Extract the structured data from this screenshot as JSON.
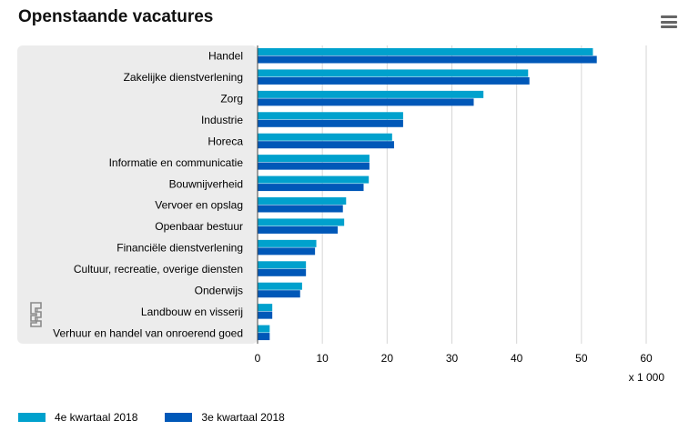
{
  "title": "Openstaande vacatures",
  "menu_icon": "hamburger-menu-icon",
  "logo": "cbs-logo",
  "chart_data": {
    "type": "bar",
    "orientation": "horizontal",
    "title": "Openstaande vacatures",
    "categories": [
      "Handel",
      "Zakelijke dienstverlening",
      "Zorg",
      "Industrie",
      "Horeca",
      "Informatie en communicatie",
      "Bouwnijverheid",
      "Vervoer en opslag",
      "Openbaar bestuur",
      "Financiële dienstverlening",
      "Cultuur, recreatie, overige diensten",
      "Onderwijs",
      "Landbouw en visserij",
      "Verhuur en handel van onroerend goed"
    ],
    "series": [
      {
        "name": "4e kwartaal 2018",
        "color": "#00a1cd",
        "values": [
          51.7,
          41.7,
          34.8,
          22.4,
          20.7,
          17.2,
          17.1,
          13.6,
          13.3,
          9.0,
          7.4,
          6.8,
          2.2,
          1.8
        ]
      },
      {
        "name": "3e kwartaal 2018",
        "color": "#0058b8",
        "values": [
          52.3,
          41.9,
          33.3,
          22.4,
          21.0,
          17.2,
          16.3,
          13.1,
          12.3,
          8.8,
          7.4,
          6.5,
          2.2,
          1.8
        ]
      }
    ],
    "xlim": [
      0,
      60
    ],
    "xticks": [
      0,
      10,
      20,
      30,
      40,
      50,
      60
    ],
    "xunit_label": "x 1 000",
    "grid": true,
    "legend_position": "bottom-left"
  }
}
